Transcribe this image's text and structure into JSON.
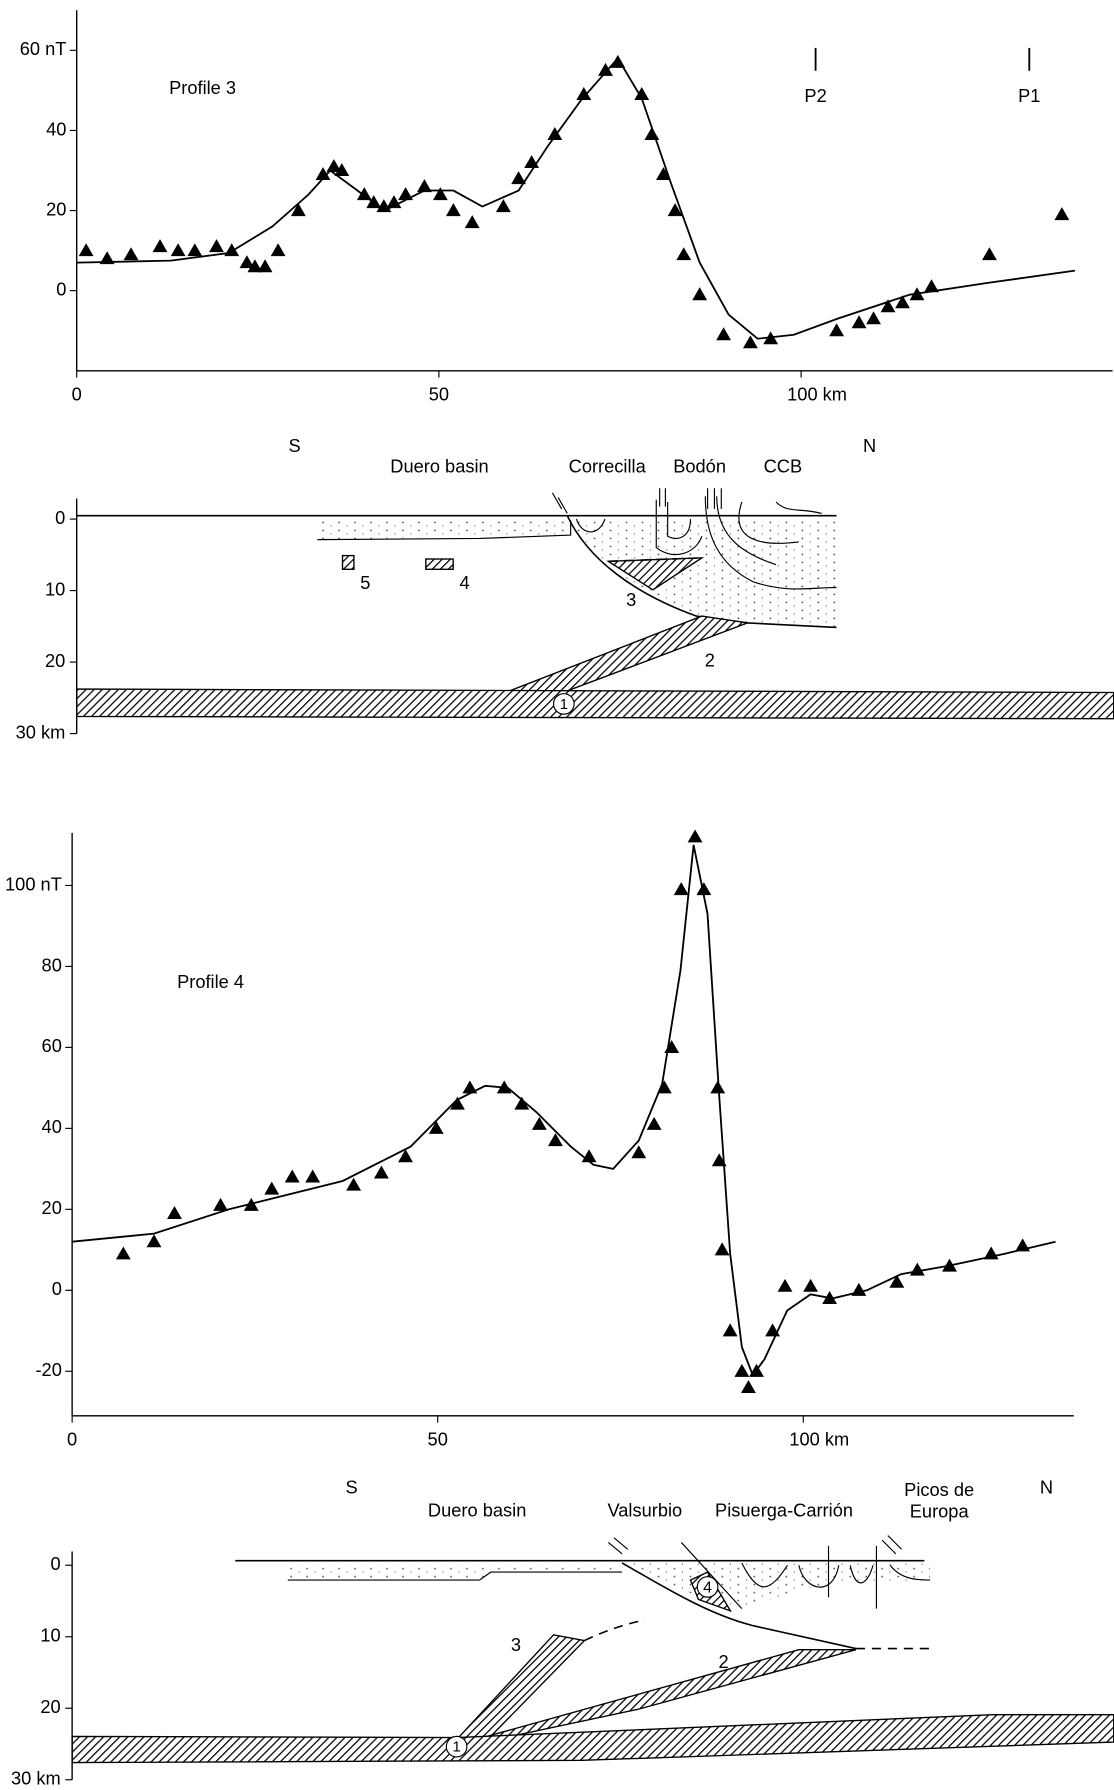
{
  "chart_data": [
    {
      "type": "scatter",
      "title": "Profile 3",
      "xlim": [
        0,
        143
      ],
      "xticks": [
        0,
        50,
        {
          "value": 100,
          "label": "100  km"
        }
      ],
      "ylim": [
        -20,
        70
      ],
      "yticks": [
        0,
        20,
        40,
        {
          "value": 60,
          "label": "60 nT"
        }
      ],
      "markers": [
        {
          "label": "P2",
          "x": 102
        },
        {
          "label": "P1",
          "x": 131.5
        }
      ],
      "series": [
        {
          "style": "markers",
          "color": "#000000",
          "x": [
            1.3,
            4.2,
            7.5,
            11.5,
            14,
            16.3,
            19.3,
            21.4,
            23.5,
            24.6,
            26,
            27.8,
            30.6,
            34,
            35.5,
            36.6,
            39.7,
            41,
            42.4,
            43.8,
            45.4,
            48,
            50.2,
            52,
            54.6,
            58.9,
            61,
            62.8,
            66,
            70,
            73,
            74.7,
            78,
            79.4,
            81,
            82.6,
            83.8,
            86,
            89.3,
            93,
            95.8,
            104.9,
            108,
            110,
            112,
            114,
            116,
            118,
            126,
            136
          ],
          "values": [
            10,
            8,
            9,
            11,
            10,
            10,
            11,
            10,
            7,
            6,
            6,
            10,
            20,
            29,
            31,
            30,
            24,
            22,
            21,
            22,
            24,
            26,
            24,
            20,
            17,
            21,
            28,
            32,
            39,
            49,
            55,
            57,
            49,
            39,
            29,
            20,
            9,
            -1,
            -11,
            -13,
            -12,
            -10,
            -8,
            -7,
            -4,
            -3,
            -1,
            1,
            9,
            19
          ]
        },
        {
          "style": "line",
          "color": "#000000",
          "x": [
            0,
            13,
            21,
            27,
            32,
            35,
            38,
            42.5,
            48,
            52,
            56,
            61,
            65,
            69.6,
            74.7,
            78,
            82,
            86,
            90,
            94,
            99,
            105,
            115,
            126,
            137.8
          ],
          "values": [
            7,
            7.5,
            9.4,
            16,
            24,
            30,
            26,
            20,
            25,
            25,
            21,
            25,
            36,
            47.5,
            58,
            48,
            27,
            7,
            -6,
            -12,
            -11,
            -7,
            -1,
            2,
            5
          ]
        }
      ]
    },
    {
      "type": "section",
      "y_inverted": true,
      "ylim": [
        0,
        30
      ],
      "yticks": [
        0,
        10,
        20,
        {
          "value": 30,
          "label": "30 km"
        }
      ],
      "labels": [
        "S",
        "Duero  basin",
        "Correcilla",
        "Bodón",
        "CCB",
        "N",
        "5",
        "4",
        "3",
        "2",
        "1"
      ]
    },
    {
      "type": "scatter",
      "title": "Profile 4",
      "xlim": [
        0,
        137
      ],
      "xticks": [
        0,
        50,
        {
          "value": 100,
          "label": "100 km"
        }
      ],
      "ylim": [
        -31,
        113
      ],
      "yticks": [
        -20,
        0,
        20,
        40,
        60,
        80,
        {
          "value": 100,
          "label": "100 nT"
        }
      ],
      "series": [
        {
          "style": "markers",
          "color": "#000000",
          "x": [
            7,
            11.2,
            14,
            20.3,
            24.5,
            27.3,
            30.1,
            32.9,
            38.5,
            42.3,
            45.6,
            49.8,
            52.7,
            54.4,
            59.1,
            61.5,
            63.9,
            66.1,
            70.7,
            77.5,
            79.6,
            81,
            82,
            83.3,
            85.2,
            86.4,
            88.3,
            88.5,
            88.9,
            90,
            91.6,
            92.5,
            93.6,
            95.8,
            97.5,
            101,
            103.6,
            107.6,
            112.8,
            115.6,
            120,
            125.7,
            130
          ],
          "values": [
            9,
            12,
            19,
            21,
            21,
            25,
            28,
            28,
            26,
            29,
            33,
            40,
            46,
            50,
            50,
            46,
            41,
            37,
            33,
            34,
            41,
            50,
            60,
            99,
            112,
            99,
            50,
            32,
            10,
            -10,
            -20,
            -24,
            -20,
            -10,
            1,
            1,
            -2,
            0,
            2,
            5,
            6,
            9,
            11
          ]
        },
        {
          "style": "line",
          "color": "#000000",
          "x": [
            0,
            11.2,
            21.4,
            37,
            46.3,
            52.6,
            56.5,
            59.6,
            63.5,
            68.2,
            71.3,
            74,
            77.5,
            80.7,
            83.2,
            85,
            86.9,
            88.5,
            90,
            91.6,
            93.1,
            94.7,
            97.8,
            101,
            104,
            108.7,
            113.4,
            119.7,
            127.5,
            134.5
          ],
          "values": [
            12,
            14,
            20,
            27,
            35.5,
            47,
            50.5,
            50,
            44,
            35.5,
            31,
            30,
            37,
            51,
            79,
            110,
            93,
            48,
            9,
            -14,
            -21,
            -17,
            -5,
            -1,
            -2,
            0,
            4,
            6,
            9,
            12
          ]
        }
      ]
    },
    {
      "type": "section",
      "y_inverted": true,
      "ylim": [
        0,
        30
      ],
      "yticks": [
        0,
        10,
        20,
        {
          "value": 30,
          "label": "30 km"
        }
      ],
      "labels": [
        "S",
        "Duero basin",
        "Valsurbio",
        "Pisuerga-Carrión",
        [
          "Picos de",
          "Europa"
        ],
        "N",
        "4",
        "3",
        "2",
        "1"
      ]
    }
  ]
}
